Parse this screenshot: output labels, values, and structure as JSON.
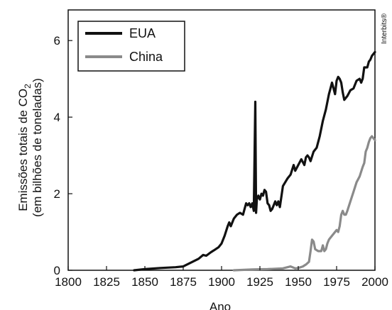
{
  "chart_data": {
    "type": "line",
    "xlabel": "Ano",
    "ylabel_line1_prefix": "Emissões totais de CO",
    "ylabel_subscript": "2",
    "ylabel_line2": "(em bilhões de toneladas)",
    "credit": "Interbits®",
    "xlim": [
      1800,
      2000
    ],
    "ylim": [
      0,
      6.8
    ],
    "xticks": [
      1800,
      1825,
      1850,
      1875,
      1900,
      1925,
      1950,
      1975,
      2000
    ],
    "yticks": [
      0,
      2,
      4,
      6
    ],
    "grid": false,
    "legend": "top-left",
    "series": [
      {
        "name": "EUA",
        "color": "#111111",
        "points": [
          [
            1843,
            0.0
          ],
          [
            1850,
            0.03
          ],
          [
            1860,
            0.06
          ],
          [
            1870,
            0.08
          ],
          [
            1875,
            0.1
          ],
          [
            1880,
            0.2
          ],
          [
            1885,
            0.3
          ],
          [
            1888,
            0.4
          ],
          [
            1890,
            0.38
          ],
          [
            1893,
            0.47
          ],
          [
            1895,
            0.52
          ],
          [
            1898,
            0.6
          ],
          [
            1900,
            0.7
          ],
          [
            1902,
            0.9
          ],
          [
            1904,
            1.15
          ],
          [
            1905,
            1.25
          ],
          [
            1906,
            1.15
          ],
          [
            1908,
            1.35
          ],
          [
            1910,
            1.45
          ],
          [
            1912,
            1.5
          ],
          [
            1914,
            1.45
          ],
          [
            1915,
            1.6
          ],
          [
            1916,
            1.75
          ],
          [
            1917,
            1.7
          ],
          [
            1918,
            1.75
          ],
          [
            1919,
            1.65
          ],
          [
            1920,
            1.75
          ],
          [
            1921,
            1.55
          ],
          [
            1922,
            4.4
          ],
          [
            1922.5,
            1.5
          ],
          [
            1923,
            1.85
          ],
          [
            1924,
            1.95
          ],
          [
            1925,
            1.85
          ],
          [
            1926,
            2.0
          ],
          [
            1927,
            1.95
          ],
          [
            1928,
            2.1
          ],
          [
            1929,
            2.05
          ],
          [
            1930,
            1.75
          ],
          [
            1931,
            1.7
          ],
          [
            1932,
            1.55
          ],
          [
            1933,
            1.6
          ],
          [
            1935,
            1.8
          ],
          [
            1936,
            1.7
          ],
          [
            1937,
            1.8
          ],
          [
            1938,
            1.65
          ],
          [
            1940,
            2.2
          ],
          [
            1943,
            2.4
          ],
          [
            1945,
            2.5
          ],
          [
            1947,
            2.75
          ],
          [
            1948,
            2.6
          ],
          [
            1950,
            2.75
          ],
          [
            1952,
            2.9
          ],
          [
            1954,
            2.75
          ],
          [
            1955,
            2.95
          ],
          [
            1956,
            3.0
          ],
          [
            1957,
            2.95
          ],
          [
            1958,
            2.85
          ],
          [
            1960,
            3.1
          ],
          [
            1962,
            3.2
          ],
          [
            1964,
            3.5
          ],
          [
            1966,
            3.9
          ],
          [
            1968,
            4.2
          ],
          [
            1970,
            4.6
          ],
          [
            1971,
            4.75
          ],
          [
            1972,
            4.9
          ],
          [
            1973,
            4.75
          ],
          [
            1974,
            4.6
          ],
          [
            1975,
            4.95
          ],
          [
            1976,
            5.05
          ],
          [
            1977,
            5.0
          ],
          [
            1978,
            4.9
          ],
          [
            1979,
            4.65
          ],
          [
            1980,
            4.45
          ],
          [
            1982,
            4.55
          ],
          [
            1984,
            4.7
          ],
          [
            1986,
            4.75
          ],
          [
            1988,
            4.95
          ],
          [
            1990,
            5.0
          ],
          [
            1991,
            4.9
          ],
          [
            1992,
            5.0
          ],
          [
            1993,
            5.3
          ],
          [
            1995,
            5.3
          ],
          [
            1996,
            5.45
          ],
          [
            1997,
            5.5
          ],
          [
            1998,
            5.6
          ],
          [
            2000,
            5.7
          ]
        ]
      },
      {
        "name": "China",
        "color": "#8a8a8a",
        "points": [
          [
            1908,
            0.0
          ],
          [
            1920,
            0.02
          ],
          [
            1930,
            0.03
          ],
          [
            1940,
            0.05
          ],
          [
            1945,
            0.1
          ],
          [
            1948,
            0.05
          ],
          [
            1950,
            0.06
          ],
          [
            1953,
            0.1
          ],
          [
            1955,
            0.15
          ],
          [
            1957,
            0.22
          ],
          [
            1958,
            0.5
          ],
          [
            1959,
            0.8
          ],
          [
            1960,
            0.75
          ],
          [
            1961,
            0.55
          ],
          [
            1963,
            0.5
          ],
          [
            1965,
            0.5
          ],
          [
            1966,
            0.65
          ],
          [
            1967,
            0.5
          ],
          [
            1968,
            0.55
          ],
          [
            1969,
            0.7
          ],
          [
            1970,
            0.8
          ],
          [
            1972,
            0.9
          ],
          [
            1974,
            1.0
          ],
          [
            1975,
            1.05
          ],
          [
            1976,
            1.0
          ],
          [
            1977,
            1.15
          ],
          [
            1978,
            1.45
          ],
          [
            1979,
            1.55
          ],
          [
            1980,
            1.45
          ],
          [
            1981,
            1.45
          ],
          [
            1982,
            1.55
          ],
          [
            1984,
            1.8
          ],
          [
            1986,
            2.05
          ],
          [
            1988,
            2.3
          ],
          [
            1990,
            2.45
          ],
          [
            1992,
            2.7
          ],
          [
            1993,
            2.8
          ],
          [
            1994,
            3.1
          ],
          [
            1995,
            3.2
          ],
          [
            1996,
            3.35
          ],
          [
            1997,
            3.45
          ],
          [
            1998,
            3.5
          ],
          [
            2000,
            3.4
          ]
        ]
      }
    ]
  }
}
